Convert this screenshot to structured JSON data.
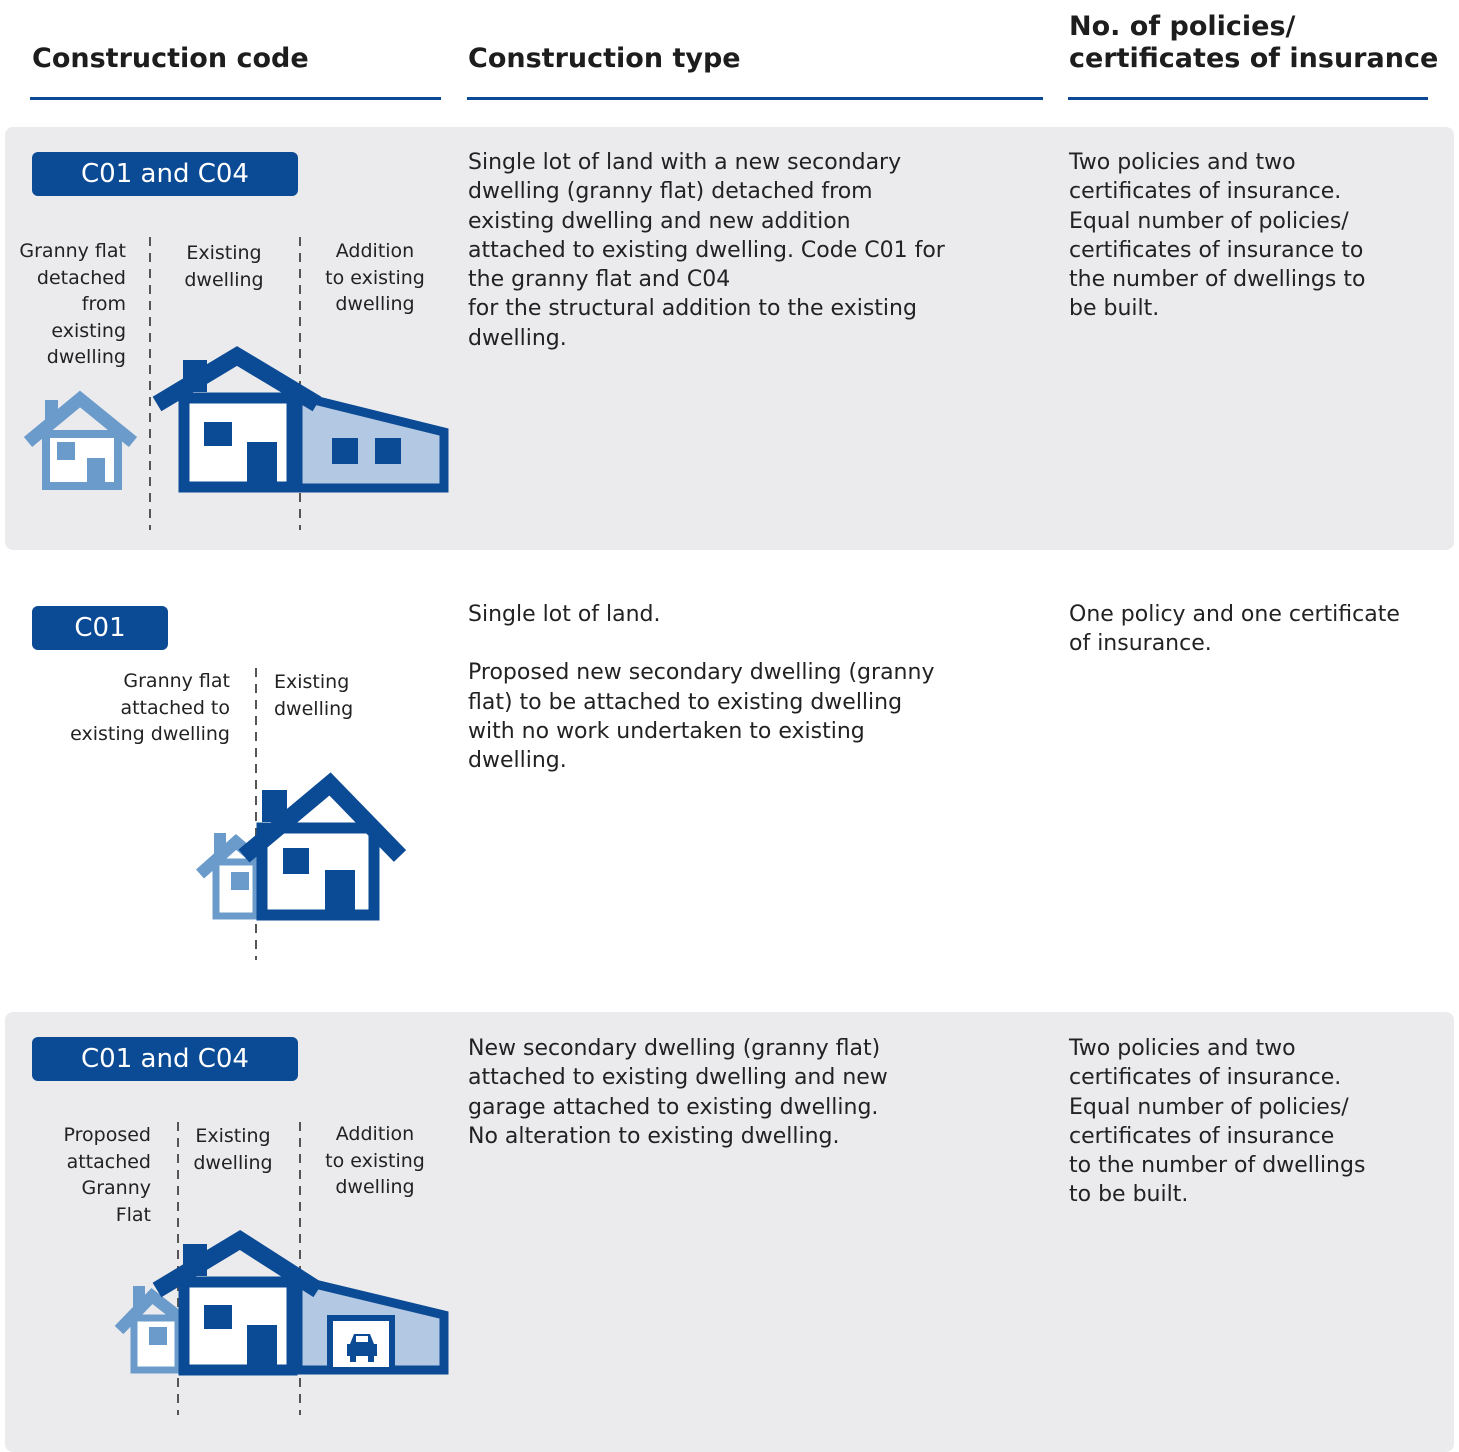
{
  "header": {
    "columns": [
      [
        "Construction code"
      ],
      [
        "Construction type"
      ],
      [
        "No. of policies/",
        "certificates of insurance"
      ]
    ]
  },
  "rows": [
    {
      "code": "C01 and C04",
      "labels": [
        [
          "Granny flat",
          "detached",
          "from",
          "existing",
          "dwelling"
        ],
        [
          "Existing",
          "dwelling"
        ],
        [
          "Addition",
          "to existing",
          "dwelling"
        ]
      ],
      "type": [
        [
          "Single lot of land with a new secondary",
          "dwelling (granny flat) detached from",
          "existing dwelling and  new addition",
          "attached to existing dwelling. Code C01 for",
          "the granny flat and C04",
          "for the structural addition to the existing",
          "dwelling."
        ]
      ],
      "policies": [
        [
          "Two policies and two",
          "certificates of insurance.",
          "Equal number of policies/",
          "certificates of insurance to",
          "the number of dwellings to",
          "be built."
        ]
      ]
    },
    {
      "code": "C01",
      "labels": [
        [
          "Granny flat",
          "attached to",
          "existing dwelling"
        ],
        [
          "Existing",
          "dwelling"
        ]
      ],
      "type": [
        [
          "Single lot of land."
        ],
        [
          "Proposed new secondary dwelling (granny",
          "flat) to be attached to existing dwelling",
          "with no work undertaken  to existing",
          "dwelling."
        ]
      ],
      "policies": [
        [
          "One policy and one certificate",
          "of insurance."
        ]
      ]
    },
    {
      "code": "C01 and C04",
      "labels": [
        [
          "Proposed",
          "attached",
          "Granny",
          "Flat"
        ],
        [
          "Existing",
          "dwelling"
        ],
        [
          "Addition",
          "to existing",
          "dwelling"
        ]
      ],
      "type": [
        [
          "New secondary dwelling (granny flat)",
          "attached to existing  dwelling and new",
          "garage attached to  existing dwelling.",
          "No alteration to existing dwelling."
        ]
      ],
      "policies": [
        [
          "Two policies and two",
          "certificates of insurance.",
          "Equal number of policies/",
          "certificates of insurance",
          "to the number of dwellings",
          "to be built."
        ]
      ]
    }
  ]
}
